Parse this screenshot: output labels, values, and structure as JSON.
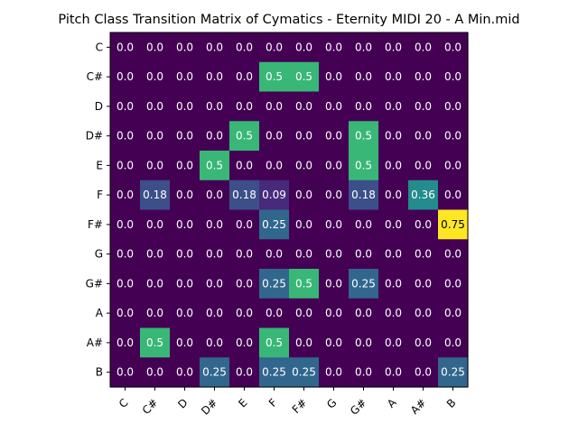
{
  "chart_data": {
    "type": "heatmap",
    "title": "Pitch Class Transition Matrix of Cymatics - Eternity MIDI 20 - A Min.mid",
    "xlabel": "",
    "ylabel": "",
    "x_categories": [
      "C",
      "C#",
      "D",
      "D#",
      "E",
      "F",
      "F#",
      "G",
      "G#",
      "A",
      "A#",
      "B"
    ],
    "y_categories": [
      "C",
      "C#",
      "D",
      "D#",
      "E",
      "F",
      "F#",
      "G",
      "G#",
      "A",
      "A#",
      "B"
    ],
    "values": [
      [
        0.0,
        0.0,
        0.0,
        0.0,
        0.0,
        0.0,
        0.0,
        0.0,
        0.0,
        0.0,
        0.0,
        0.0
      ],
      [
        0.0,
        0.0,
        0.0,
        0.0,
        0.0,
        0.5,
        0.5,
        0.0,
        0.0,
        0.0,
        0.0,
        0.0
      ],
      [
        0.0,
        0.0,
        0.0,
        0.0,
        0.0,
        0.0,
        0.0,
        0.0,
        0.0,
        0.0,
        0.0,
        0.0
      ],
      [
        0.0,
        0.0,
        0.0,
        0.0,
        0.5,
        0.0,
        0.0,
        0.0,
        0.5,
        0.0,
        0.0,
        0.0
      ],
      [
        0.0,
        0.0,
        0.0,
        0.5,
        0.0,
        0.0,
        0.0,
        0.0,
        0.5,
        0.0,
        0.0,
        0.0
      ],
      [
        0.0,
        0.18,
        0.0,
        0.0,
        0.18,
        0.09,
        0.0,
        0.0,
        0.18,
        0.0,
        0.36,
        0.0
      ],
      [
        0.0,
        0.0,
        0.0,
        0.0,
        0.0,
        0.25,
        0.0,
        0.0,
        0.0,
        0.0,
        0.0,
        0.75
      ],
      [
        0.0,
        0.0,
        0.0,
        0.0,
        0.0,
        0.0,
        0.0,
        0.0,
        0.0,
        0.0,
        0.0,
        0.0
      ],
      [
        0.0,
        0.0,
        0.0,
        0.0,
        0.0,
        0.25,
        0.5,
        0.0,
        0.25,
        0.0,
        0.0,
        0.0
      ],
      [
        0.0,
        0.0,
        0.0,
        0.0,
        0.0,
        0.0,
        0.0,
        0.0,
        0.0,
        0.0,
        0.0,
        0.0
      ],
      [
        0.0,
        0.5,
        0.0,
        0.0,
        0.0,
        0.5,
        0.0,
        0.0,
        0.0,
        0.0,
        0.0,
        0.0
      ],
      [
        0.0,
        0.0,
        0.0,
        0.25,
        0.0,
        0.25,
        0.25,
        0.0,
        0.0,
        0.0,
        0.0,
        0.25
      ]
    ],
    "value_labels": [
      [
        "0.0",
        "0.0",
        "0.0",
        "0.0",
        "0.0",
        "0.0",
        "0.0",
        "0.0",
        "0.0",
        "0.0",
        "0.0",
        "0.0"
      ],
      [
        "0.0",
        "0.0",
        "0.0",
        "0.0",
        "0.0",
        "0.5",
        "0.5",
        "0.0",
        "0.0",
        "0.0",
        "0.0",
        "0.0"
      ],
      [
        "0.0",
        "0.0",
        "0.0",
        "0.0",
        "0.0",
        "0.0",
        "0.0",
        "0.0",
        "0.0",
        "0.0",
        "0.0",
        "0.0"
      ],
      [
        "0.0",
        "0.0",
        "0.0",
        "0.0",
        "0.5",
        "0.0",
        "0.0",
        "0.0",
        "0.5",
        "0.0",
        "0.0",
        "0.0"
      ],
      [
        "0.0",
        "0.0",
        "0.0",
        "0.5",
        "0.0",
        "0.0",
        "0.0",
        "0.0",
        "0.5",
        "0.0",
        "0.0",
        "0.0"
      ],
      [
        "0.0",
        "0.18",
        "0.0",
        "0.0",
        "0.18",
        "0.09",
        "0.0",
        "0.0",
        "0.18",
        "0.0",
        "0.36",
        "0.0"
      ],
      [
        "0.0",
        "0.0",
        "0.0",
        "0.0",
        "0.0",
        "0.25",
        "0.0",
        "0.0",
        "0.0",
        "0.0",
        "0.0",
        "0.75"
      ],
      [
        "0.0",
        "0.0",
        "0.0",
        "0.0",
        "0.0",
        "0.0",
        "0.0",
        "0.0",
        "0.0",
        "0.0",
        "0.0",
        "0.0"
      ],
      [
        "0.0",
        "0.0",
        "0.0",
        "0.0",
        "0.0",
        "0.25",
        "0.5",
        "0.0",
        "0.25",
        "0.0",
        "0.0",
        "0.0"
      ],
      [
        "0.0",
        "0.0",
        "0.0",
        "0.0",
        "0.0",
        "0.0",
        "0.0",
        "0.0",
        "0.0",
        "0.0",
        "0.0",
        "0.0"
      ],
      [
        "0.0",
        "0.5",
        "0.0",
        "0.0",
        "0.0",
        "0.5",
        "0.0",
        "0.0",
        "0.0",
        "0.0",
        "0.0",
        "0.0"
      ],
      [
        "0.0",
        "0.0",
        "0.0",
        "0.25",
        "0.0",
        "0.25",
        "0.25",
        "0.0",
        "0.0",
        "0.0",
        "0.0",
        "0.25"
      ]
    ],
    "colormap": "viridis",
    "value_range": [
      0,
      0.75
    ],
    "grid": false,
    "legend": "none"
  }
}
